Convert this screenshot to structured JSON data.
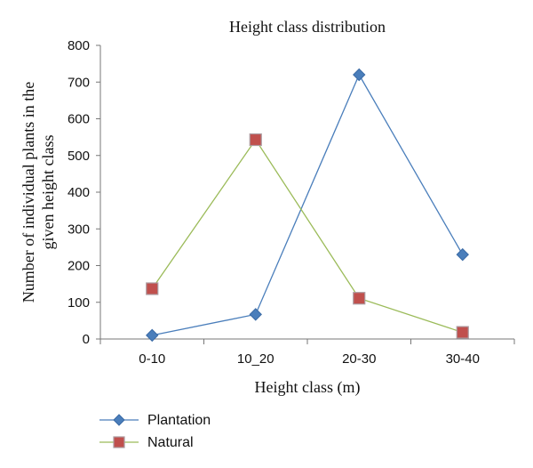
{
  "chart_data": {
    "type": "line",
    "title": "Height class distribution",
    "xlabel": "Height class (m)",
    "ylabel_lines": [
      "Number of individual plants in the",
      "given height class"
    ],
    "categories": [
      "0-10",
      "10_20",
      "20-30",
      "30-40"
    ],
    "ylim": [
      0,
      800
    ],
    "yticks": [
      "0",
      "100",
      "200",
      "300",
      "400",
      "500",
      "600",
      "700",
      "800"
    ],
    "grid": false,
    "legend_position": "bottom-left",
    "series": [
      {
        "name": "Plantation",
        "values": [
          10,
          67,
          720,
          230
        ],
        "color": "#4a7ebb",
        "marker": "diamond",
        "marker_color": "#4a7ebb"
      },
      {
        "name": "Natural",
        "values": [
          137,
          543,
          111,
          18
        ],
        "color": "#9bbb59",
        "marker": "square",
        "marker_color": "#c0504d"
      }
    ]
  }
}
